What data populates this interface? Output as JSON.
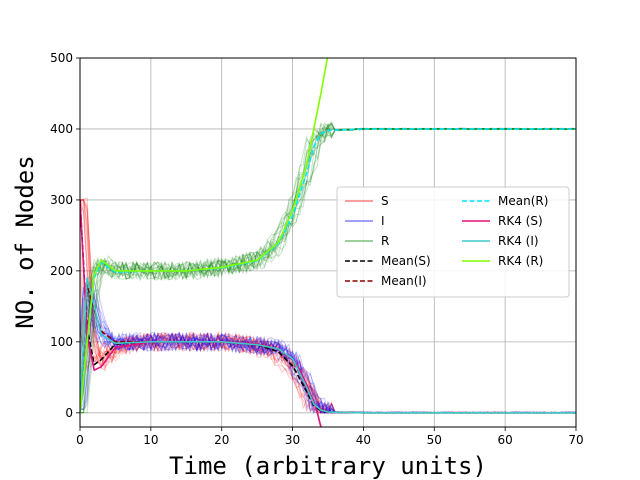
{
  "chart_data": {
    "type": "line",
    "title": "",
    "xlabel": "Time (arbitrary units)",
    "ylabel": "NO. of Nodes",
    "xlim": [
      0,
      70
    ],
    "ylim": [
      -20,
      500
    ],
    "xticks": [
      "0",
      "10",
      "20",
      "30",
      "40",
      "50",
      "60",
      "70"
    ],
    "yticks": [
      "0",
      "100",
      "200",
      "300",
      "400",
      "500"
    ],
    "grid": true,
    "legend_position": "center-right",
    "legend_columns": 2,
    "series": [
      {
        "name": "S",
        "color": "#ff0000",
        "style": "stochastic-runs",
        "x": [
          0,
          1,
          2,
          3,
          5,
          10,
          15,
          20,
          25,
          28,
          30,
          32,
          33,
          34,
          35,
          40,
          50,
          60,
          70
        ],
        "values": [
          300,
          120,
          70,
          75,
          95,
          100,
          100,
          100,
          95,
          85,
          65,
          30,
          10,
          3,
          1,
          0,
          0,
          0,
          0
        ]
      },
      {
        "name": "I",
        "color": "#0000ff",
        "style": "stochastic-runs",
        "x": [
          0,
          1,
          2,
          3,
          5,
          10,
          15,
          20,
          25,
          28,
          30,
          32,
          33,
          34,
          35,
          40,
          50,
          60,
          70
        ],
        "values": [
          5,
          180,
          140,
          110,
          100,
          100,
          100,
          100,
          95,
          90,
          75,
          35,
          12,
          4,
          1,
          0,
          0,
          0,
          0
        ]
      },
      {
        "name": "R",
        "color": "#008000",
        "style": "stochastic-runs",
        "x": [
          0,
          1,
          2,
          3,
          5,
          10,
          15,
          20,
          25,
          28,
          30,
          32,
          33,
          34,
          35,
          40,
          50,
          60,
          70
        ],
        "values": [
          0,
          100,
          190,
          210,
          200,
          200,
          200,
          205,
          215,
          240,
          280,
          340,
          375,
          393,
          398,
          400,
          400,
          400,
          400
        ]
      },
      {
        "name": "Mean(S)",
        "color": "#000000",
        "style": "dashed",
        "x": [
          0,
          1,
          2,
          3,
          5,
          10,
          15,
          20,
          25,
          28,
          30,
          32,
          33,
          34,
          35,
          40,
          50,
          60,
          70
        ],
        "values": [
          300,
          120,
          68,
          75,
          97,
          100,
          100,
          100,
          96,
          86,
          66,
          30,
          10,
          3,
          1,
          0,
          0,
          0,
          0
        ]
      },
      {
        "name": "Mean(I)",
        "color": "#8b0000",
        "style": "dashed",
        "x": [
          0,
          1,
          2,
          3,
          5,
          10,
          15,
          20,
          25,
          28,
          30,
          32,
          33,
          34,
          35,
          40,
          50,
          60,
          70
        ],
        "values": [
          5,
          180,
          145,
          115,
          100,
          100,
          100,
          100,
          96,
          90,
          75,
          35,
          12,
          4,
          1,
          0,
          0,
          0,
          0
        ]
      },
      {
        "name": "Mean(R)",
        "color": "#00e5ff",
        "style": "dashed",
        "x": [
          0,
          1,
          2,
          3,
          5,
          10,
          15,
          20,
          25,
          28,
          30,
          32,
          33,
          34,
          35,
          40,
          50,
          60,
          70
        ],
        "values": [
          0,
          100,
          190,
          212,
          198,
          200,
          200,
          204,
          214,
          238,
          278,
          338,
          375,
          393,
          398,
          400,
          400,
          400,
          400
        ]
      },
      {
        "name": "RK4 (S)",
        "color": "#e0107a",
        "style": "solid",
        "x": [
          0,
          1,
          2,
          3,
          5,
          10,
          15,
          20,
          25,
          28,
          30,
          31,
          32,
          33,
          33.5,
          34
        ],
        "values": [
          300,
          110,
          60,
          65,
          92,
          100,
          100,
          100,
          97,
          90,
          75,
          60,
          40,
          15,
          0,
          -20
        ]
      },
      {
        "name": "RK4 (I)",
        "color": "#3ec9c9",
        "style": "solid",
        "x": [
          0,
          1,
          2,
          3,
          5,
          10,
          15,
          20,
          25,
          28,
          30,
          32,
          33,
          34,
          35,
          40,
          50,
          60,
          70
        ],
        "values": [
          5,
          190,
          150,
          110,
          98,
          100,
          100,
          100,
          96,
          90,
          76,
          36,
          12,
          4,
          1,
          0,
          0,
          0,
          0
        ]
      },
      {
        "name": "RK4 (R)",
        "color": "#7fff00",
        "style": "solid",
        "x": [
          0,
          1,
          2,
          3,
          5,
          10,
          15,
          20,
          25,
          28,
          30,
          32,
          33,
          34,
          35
        ],
        "values": [
          0,
          100,
          195,
          215,
          200,
          200,
          200,
          205,
          215,
          240,
          285,
          350,
          400,
          450,
          505
        ]
      }
    ]
  }
}
